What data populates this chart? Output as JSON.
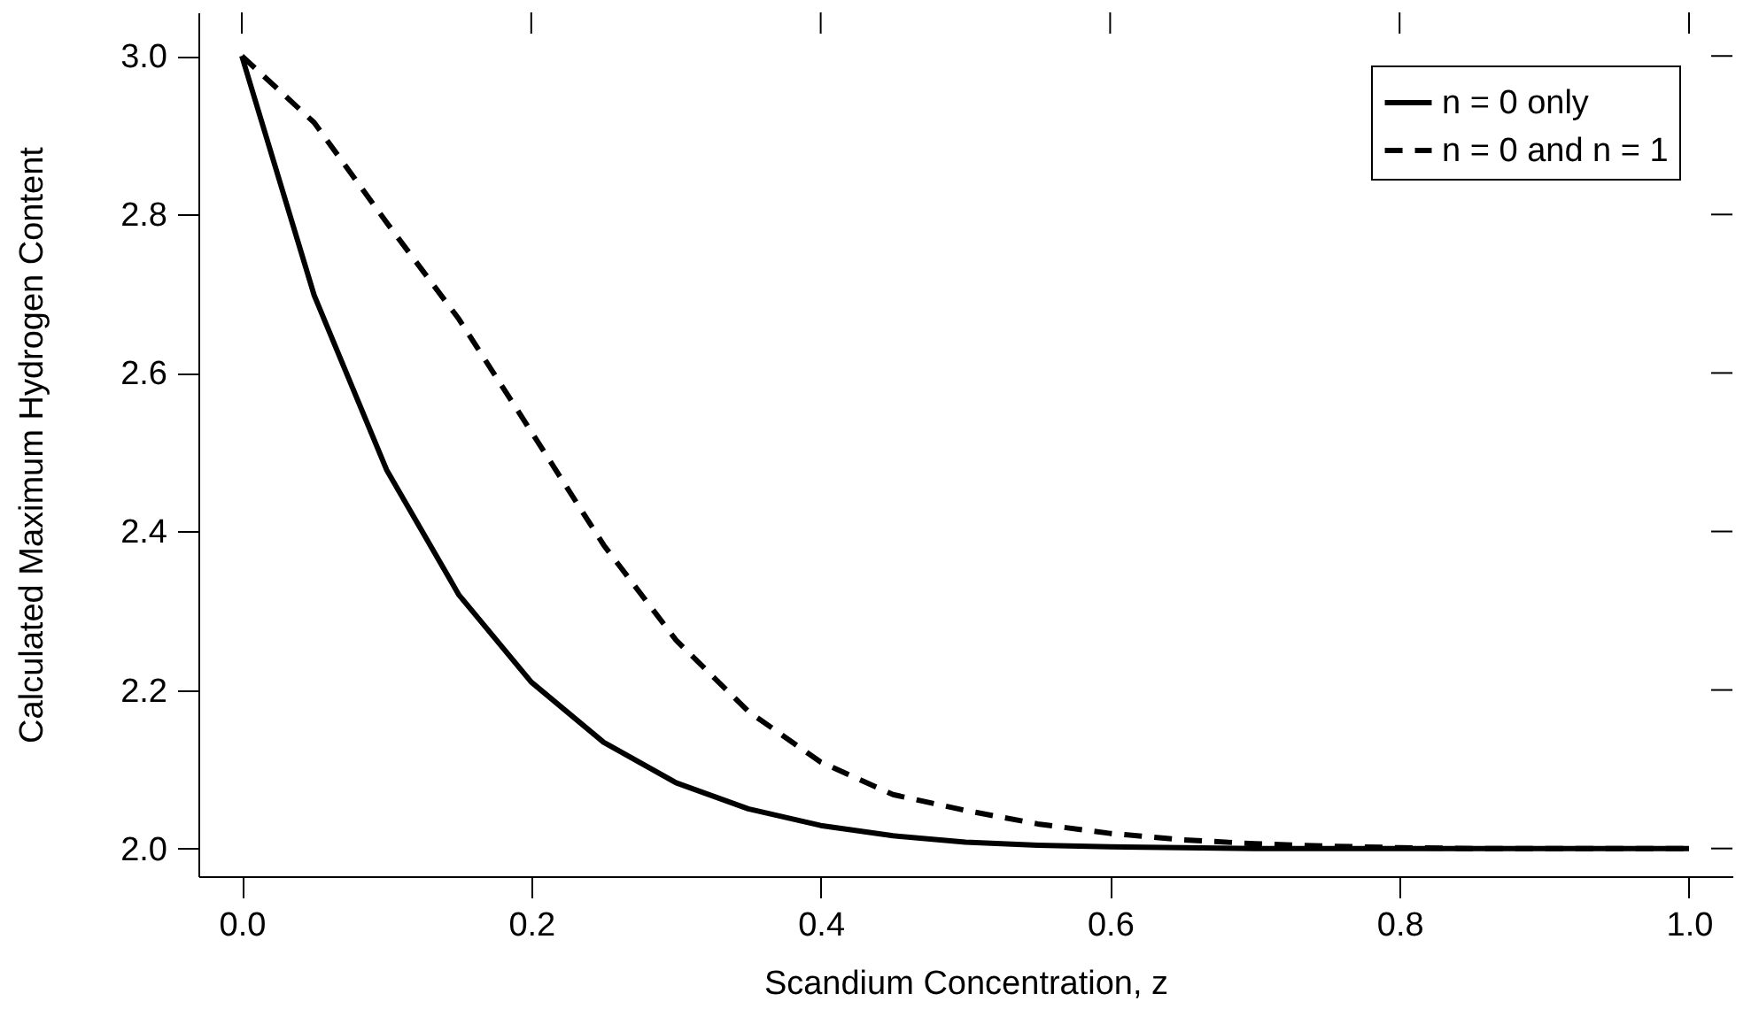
{
  "chart_data": {
    "type": "line",
    "xlabel": "Scandium Concentration, z",
    "ylabel": "Calculated Maximum Hydrogen Content",
    "x": [
      0,
      0.05,
      0.1,
      0.15,
      0.2,
      0.25,
      0.3,
      0.35,
      0.4,
      0.45,
      0.5,
      0.55,
      0.6,
      0.65,
      0.7,
      0.75,
      0.8,
      0.85,
      0.9,
      0.95,
      1.0
    ],
    "series": [
      {
        "name": "n = 0 only",
        "color": "#000000",
        "line_style": "solid",
        "values": [
          3.0,
          2.698,
          2.478,
          2.32,
          2.21,
          2.134,
          2.083,
          2.05,
          2.029,
          2.016,
          2.008,
          2.004,
          2.002,
          2.001,
          2.0,
          2.0,
          2.0,
          2.0,
          2.0,
          2.0,
          2.0
        ]
      },
      {
        "name": "n = 0 and n = 1",
        "color": "#000000",
        "line_style": "dashed",
        "values": [
          3.0,
          2.916,
          2.79,
          2.668,
          2.526,
          2.383,
          2.263,
          2.173,
          2.109,
          2.068,
          2.048,
          2.031,
          2.019,
          2.011,
          2.006,
          2.003,
          2.001,
          2.0,
          2.0,
          2.0,
          2.0
        ]
      }
    ],
    "xlim": [
      -0.03,
      1.03
    ],
    "ylim": [
      1.965,
      3.055
    ],
    "xticks": [
      {
        "value": 0,
        "label": "0.0"
      },
      0.2,
      0.4,
      0.6,
      0.8,
      {
        "value": 1,
        "label": "1.0"
      }
    ],
    "yticks": [
      {
        "value": 2,
        "label": "2.0"
      },
      2.2,
      2.4,
      2.6,
      2.8,
      {
        "value": 3,
        "label": "3.0"
      }
    ],
    "grid": false,
    "legend": "top right",
    "marker": "none"
  }
}
